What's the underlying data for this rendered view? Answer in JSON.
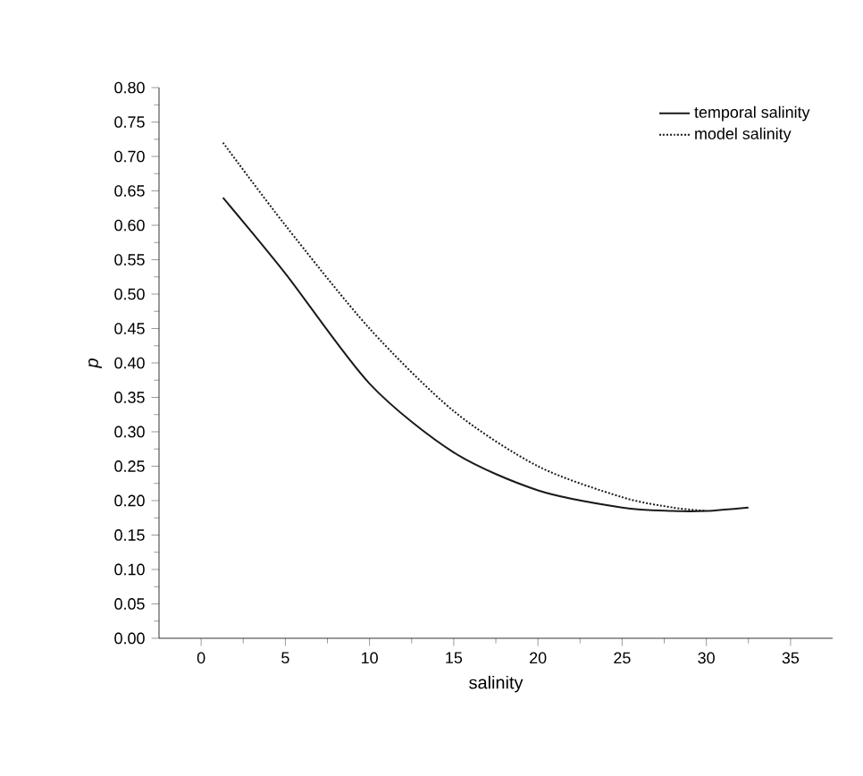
{
  "chart_data": {
    "type": "line",
    "xlabel": "salinity",
    "ylabel": "p",
    "xlim": [
      -2.5,
      37.5
    ],
    "xticks": [
      0,
      5,
      10,
      15,
      20,
      25,
      30,
      35
    ],
    "ylim": [
      0,
      0.8
    ],
    "yticks": [
      {
        "value": 0,
        "label": "0.00"
      },
      {
        "value": 0.05,
        "label": "0.05"
      },
      {
        "value": 0.1,
        "label": "0.10"
      },
      {
        "value": 0.15,
        "label": "0.15"
      },
      {
        "value": 0.2,
        "label": "0.20"
      },
      {
        "value": 0.25,
        "label": "0.25"
      },
      {
        "value": 0.3,
        "label": "0.30"
      },
      {
        "value": 0.35,
        "label": "0.35"
      },
      {
        "value": 0.4,
        "label": "0.40"
      },
      {
        "value": 0.45,
        "label": "0.45"
      },
      {
        "value": 0.5,
        "label": "0.50"
      },
      {
        "value": 0.55,
        "label": "0.55"
      },
      {
        "value": 0.6,
        "label": "0.60"
      },
      {
        "value": 0.65,
        "label": "0.65"
      },
      {
        "value": 0.7,
        "label": "0.70"
      },
      {
        "value": 0.75,
        "label": "0.75"
      },
      {
        "value": 0.8,
        "label": "0.80"
      }
    ],
    "legend": "top right",
    "grid": false,
    "series": [
      {
        "name": "temporal salinity",
        "color": "#1a1a1a",
        "line_style": "solid",
        "x": [
          1.3,
          5,
          10,
          15,
          20,
          25,
          28,
          30,
          32.5
        ],
        "values": [
          0.64,
          0.53,
          0.37,
          0.27,
          0.215,
          0.19,
          0.185,
          0.185,
          0.19
        ]
      },
      {
        "name": "model salinity",
        "color": "#1a1a1a",
        "line_style": "dotted",
        "x": [
          1.3,
          5,
          10,
          15,
          20,
          25,
          28,
          30
        ],
        "values": [
          0.72,
          0.6,
          0.45,
          0.33,
          0.25,
          0.205,
          0.19,
          0.185
        ]
      }
    ]
  }
}
